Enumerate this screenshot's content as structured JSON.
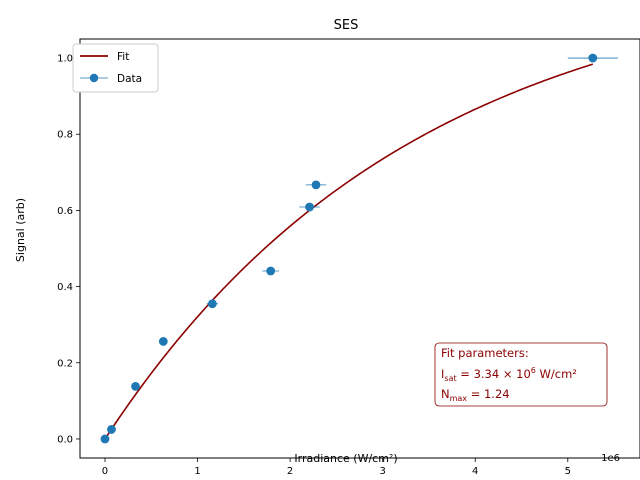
{
  "chart_data": {
    "type": "scatter",
    "title": "SES",
    "xlabel": "Irradiance (W/cm²)",
    "ylabel": "Signal (arb)",
    "x_offset_label": "1e6",
    "x_scale": 1000000,
    "xlim": [
      -270000,
      5780000
    ],
    "ylim": [
      -0.05,
      1.05
    ],
    "x_ticks": [
      0,
      1000000,
      2000000,
      3000000,
      4000000,
      5000000
    ],
    "x_tick_labels": [
      "0",
      "1",
      "2",
      "3",
      "4",
      "5"
    ],
    "y_ticks": [
      0.0,
      0.2,
      0.4,
      0.6,
      0.8,
      1.0
    ],
    "y_tick_labels": [
      "0.0",
      "0.2",
      "0.4",
      "0.6",
      "0.8",
      "1.0"
    ],
    "grid": false,
    "legend_position": "top-left",
    "legend": [
      "Fit",
      "Data"
    ],
    "colors": {
      "fit": "#8b0000",
      "data": "#1f77b4"
    },
    "series": [
      {
        "name": "Data",
        "kind": "errorbar",
        "x": [
          0,
          70000,
          330000,
          630000,
          1160000,
          1790000,
          2210000,
          2280000,
          5270000
        ],
        "y": [
          0.0,
          0.025,
          0.138,
          0.256,
          0.355,
          0.441,
          0.609,
          0.667,
          1.0
        ],
        "xerr": [
          0,
          20000,
          20000,
          30000,
          60000,
          90000,
          110000,
          110000,
          270000
        ]
      },
      {
        "name": "Fit",
        "kind": "line",
        "model": "N_max * (1 - exp(-I / I_sat))",
        "params": {
          "I_sat": 3340000,
          "N_max": 1.24
        },
        "x_range": [
          0,
          5270000
        ]
      }
    ],
    "annotation": {
      "heading": "Fit parameters:",
      "line1_symbol": "I",
      "line1_sub": "sat",
      "line1_mid": " = 3.34 × 10",
      "line1_sup": "6",
      "line1_unit": " W/cm²",
      "line2_symbol": "N",
      "line2_sub": "max",
      "line2_rest": " = 1.24",
      "position": "bottom-right"
    }
  }
}
